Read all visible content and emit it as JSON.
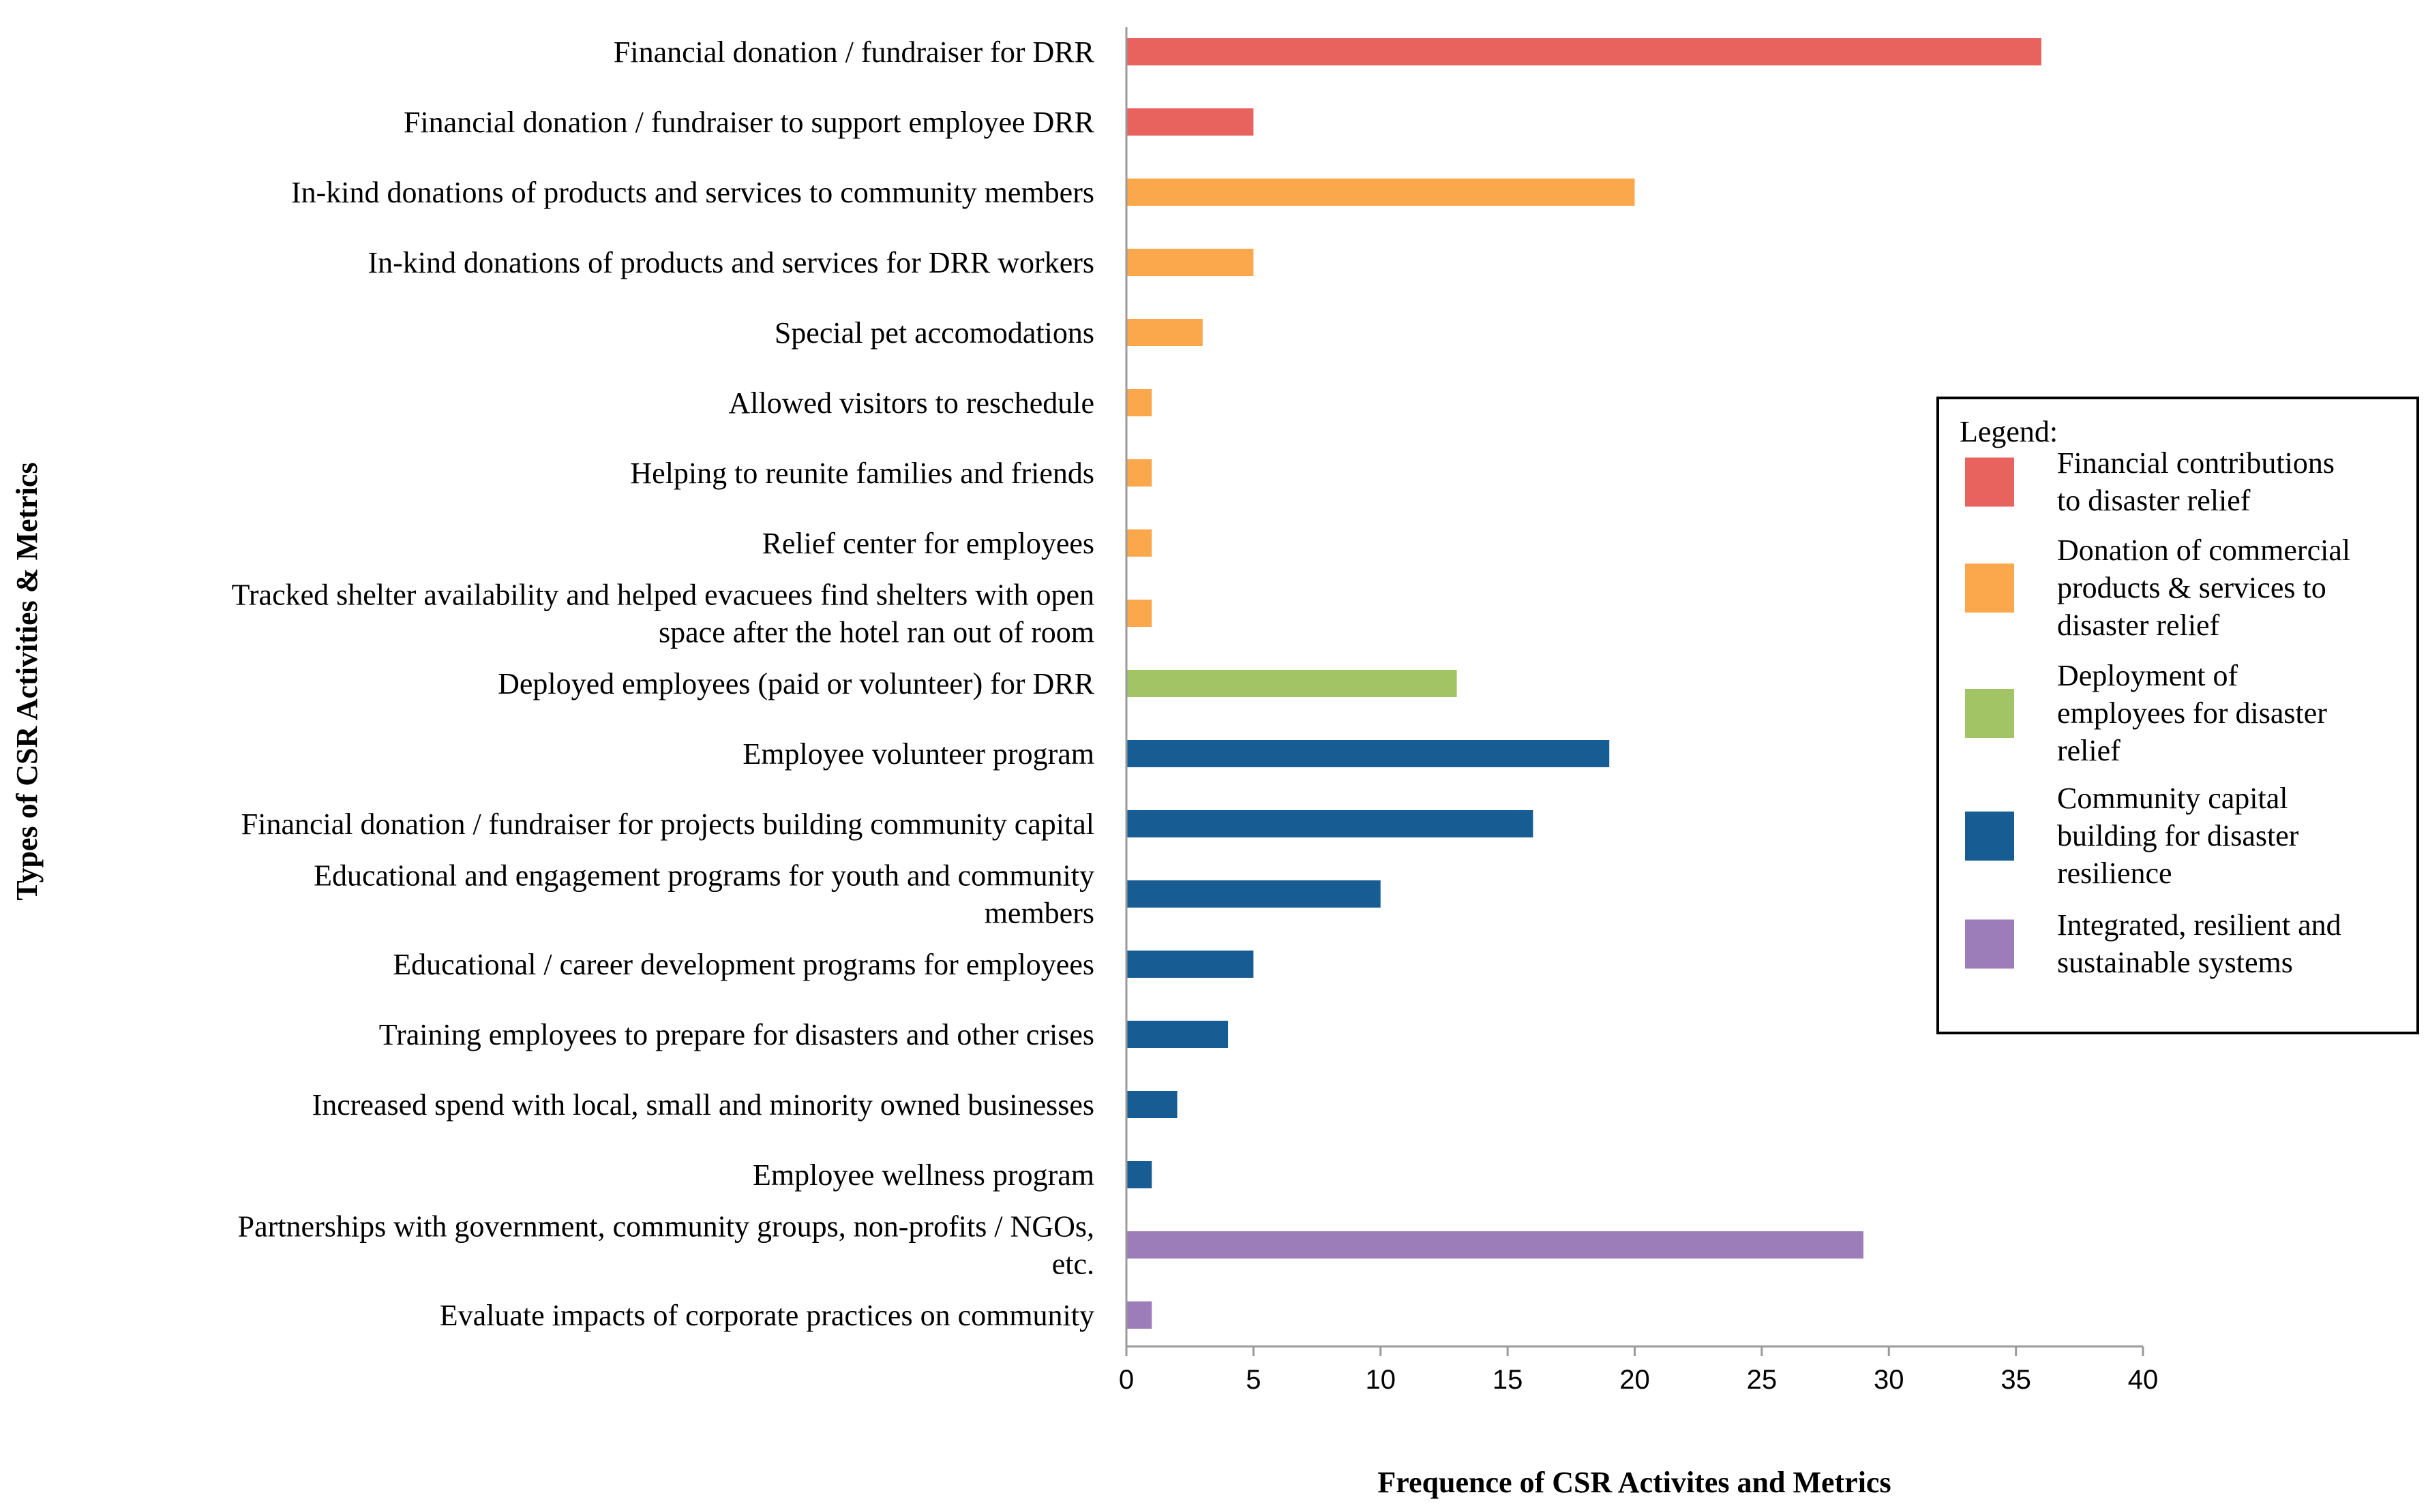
{
  "chart_data": {
    "type": "bar",
    "orientation": "horizontal",
    "title": "",
    "xlabel": "Frequence of CSR Activites and Metrics",
    "ylabel": "Types of CSR Activities & Metrics",
    "xlim": [
      0,
      40
    ],
    "xticks": [
      0,
      5,
      10,
      15,
      20,
      25,
      30,
      35,
      40
    ],
    "grid": false,
    "legend_position": "right",
    "legend": {
      "title": "Legend:",
      "entries": [
        {
          "group": "financial",
          "lines": [
            "Financial contributions",
            "to disaster relief"
          ],
          "color": "#E8635E"
        },
        {
          "group": "donation",
          "lines": [
            "Donation of commercial",
            "products & services to",
            "disaster relief"
          ],
          "color": "#FBA84C"
        },
        {
          "group": "deployment",
          "lines": [
            "Deployment of",
            "employees for disaster",
            "relief"
          ],
          "color": "#A2C465"
        },
        {
          "group": "community",
          "lines": [
            "Community capital",
            "building for disaster",
            "resilience"
          ],
          "color": "#175C93"
        },
        {
          "group": "integrated",
          "lines": [
            "Integrated, resilient and",
            "sustainable systems"
          ],
          "color": "#9C7CB9"
        }
      ]
    },
    "categories": [
      {
        "lines": [
          "Financial donation / fundraiser for DRR"
        ],
        "value": 36,
        "group": "financial"
      },
      {
        "lines": [
          "Financial donation / fundraiser to support employee DRR"
        ],
        "value": 5,
        "group": "financial"
      },
      {
        "lines": [
          "In-kind donations of products and services to community members"
        ],
        "value": 20,
        "group": "donation"
      },
      {
        "lines": [
          "In-kind donations of products and services for DRR workers"
        ],
        "value": 5,
        "group": "donation"
      },
      {
        "lines": [
          "Special pet accomodations"
        ],
        "value": 3,
        "group": "donation"
      },
      {
        "lines": [
          "Allowed visitors to reschedule"
        ],
        "value": 1,
        "group": "donation"
      },
      {
        "lines": [
          "Helping to reunite families and friends"
        ],
        "value": 1,
        "group": "donation"
      },
      {
        "lines": [
          "Relief center for employees"
        ],
        "value": 1,
        "group": "donation"
      },
      {
        "lines": [
          "Tracked shelter availability and helped evacuees find shelters with open",
          "space after the hotel ran out of room"
        ],
        "value": 1,
        "group": "donation"
      },
      {
        "lines": [
          "Deployed employees (paid or volunteer) for DRR"
        ],
        "value": 13,
        "group": "deployment"
      },
      {
        "lines": [
          "Employee volunteer program"
        ],
        "value": 19,
        "group": "community"
      },
      {
        "lines": [
          "Financial donation / fundraiser for projects building community capital"
        ],
        "value": 16,
        "group": "community"
      },
      {
        "lines": [
          "Educational and engagement programs for youth and community",
          "members"
        ],
        "value": 10,
        "group": "community"
      },
      {
        "lines": [
          "Educational / career development programs for employees"
        ],
        "value": 5,
        "group": "community"
      },
      {
        "lines": [
          "Training employees to prepare for disasters and other crises"
        ],
        "value": 4,
        "group": "community"
      },
      {
        "lines": [
          "Increased spend with local, small and minority owned businesses"
        ],
        "value": 2,
        "group": "community"
      },
      {
        "lines": [
          "Employee wellness program"
        ],
        "value": 1,
        "group": "community"
      },
      {
        "lines": [
          "Partnerships with government, community groups, non-profits / NGOs,",
          "etc."
        ],
        "value": 29,
        "group": "integrated"
      },
      {
        "lines": [
          "Evaluate impacts of corporate practices on community"
        ],
        "value": 1,
        "group": "integrated"
      }
    ]
  }
}
